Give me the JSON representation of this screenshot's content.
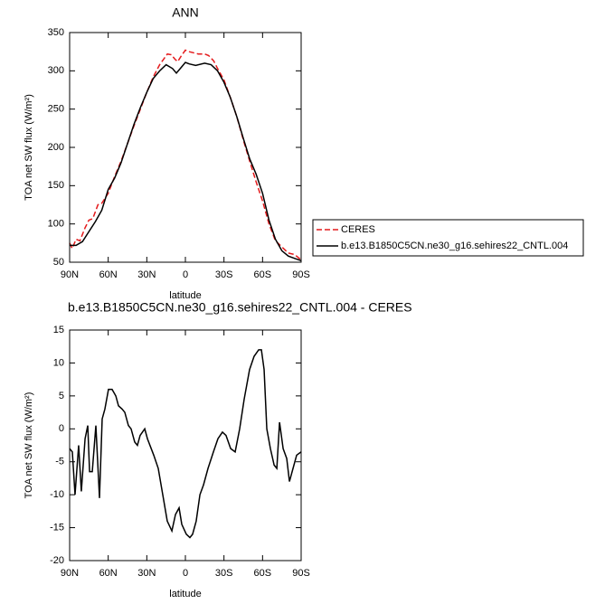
{
  "chart_data": [
    {
      "type": "line",
      "title": "ANN",
      "xlabel": "latitude",
      "ylabel": "TOA net SW flux (W/m²)",
      "xlim": [
        90,
        -90
      ],
      "xticks": [
        {
          "value": 90,
          "label": "90N"
        },
        {
          "value": 60,
          "label": "60N"
        },
        {
          "value": 30,
          "label": "30N"
        },
        0,
        {
          "value": -30,
          "label": "30S"
        },
        {
          "value": -60,
          "label": "60S"
        },
        {
          "value": -90,
          "label": "90S"
        }
      ],
      "ylim": [
        50,
        350
      ],
      "yticks": [
        50,
        100,
        150,
        200,
        250,
        300,
        350
      ],
      "legend": "right",
      "series": [
        {
          "name": "CERES",
          "color": "#e41a1c",
          "dash": true,
          "x": [
            90,
            88,
            85,
            82,
            78,
            75,
            72,
            68,
            65,
            60,
            55,
            50,
            45,
            40,
            35,
            30,
            25,
            20,
            17,
            14,
            11,
            8,
            6,
            3,
            0,
            -3,
            -10,
            -15,
            -18,
            -22,
            -25,
            -30,
            -35,
            -40,
            -45,
            -50,
            -55,
            -60,
            -65,
            -70,
            -75,
            -80,
            -85,
            -90
          ],
          "values": [
            75,
            68,
            80,
            78,
            95,
            105,
            107,
            125,
            127,
            140,
            162,
            182,
            205,
            228,
            250,
            272,
            292,
            308,
            315,
            322,
            321,
            315,
            312,
            320,
            327,
            325,
            322,
            322,
            320,
            313,
            303,
            288,
            265,
            240,
            210,
            182,
            155,
            130,
            100,
            78,
            70,
            62,
            60,
            53
          ]
        },
        {
          "name": "b.e13.B1850C5CN.ne30_g16.sehires22_CNTL.004",
          "color": "#000000",
          "dash": false,
          "x": [
            90,
            85,
            80,
            75,
            70,
            65,
            60,
            55,
            50,
            45,
            40,
            35,
            30,
            25,
            20,
            15,
            10,
            7,
            3,
            0,
            -3,
            -8,
            -15,
            -20,
            -25,
            -30,
            -35,
            -40,
            -45,
            -50,
            -55,
            -60,
            -65,
            -70,
            -75,
            -80,
            -85,
            -90
          ],
          "values": [
            72,
            72,
            77,
            90,
            103,
            118,
            145,
            160,
            180,
            205,
            230,
            252,
            272,
            290,
            300,
            308,
            303,
            297,
            305,
            311,
            309,
            307,
            310,
            308,
            300,
            285,
            265,
            240,
            212,
            185,
            165,
            140,
            105,
            80,
            65,
            58,
            55,
            52
          ]
        }
      ]
    },
    {
      "type": "line",
      "title": "b.e13.B1850C5CN.ne30_g16.sehires22_CNTL.004 - CERES",
      "xlabel": "latitude",
      "ylabel": "TOA net SW flux (W/m²)",
      "xlim": [
        90,
        -90
      ],
      "xticks": [
        {
          "value": 90,
          "label": "90N"
        },
        {
          "value": 60,
          "label": "60N"
        },
        {
          "value": 30,
          "label": "30N"
        },
        0,
        {
          "value": -30,
          "label": "30S"
        },
        {
          "value": -60,
          "label": "60S"
        },
        {
          "value": -90,
          "label": "90S"
        }
      ],
      "ylim": [
        -20,
        15
      ],
      "yticks": [
        -20,
        -15,
        -10,
        -5,
        0,
        5,
        10,
        15
      ],
      "color": "#000000",
      "x": [
        90,
        87.9,
        85.8,
        83,
        80.9,
        78,
        75.9,
        74.5,
        72.4,
        69.6,
        66.8,
        64.7,
        62.6,
        59.8,
        57,
        54.1,
        52,
        49.2,
        47.1,
        44.3,
        42.2,
        39.4,
        37.3,
        35.2,
        31.6,
        29.5,
        24.6,
        21.1,
        17.6,
        14.1,
        10.5,
        7.7,
        4.9,
        2.8,
        -0.7,
        -3.5,
        -5.6,
        -8.4,
        -11.3,
        -14.1,
        -17.6,
        -21.8,
        -25.3,
        -28.8,
        -31.6,
        -35.2,
        -38.7,
        -42.2,
        -45.7,
        -49.9,
        -53.4,
        -57,
        -59.1,
        -61.2,
        -63.3,
        -66.1,
        -69,
        -71.1,
        -73.2,
        -76,
        -78.8,
        -80.9,
        -83.7,
        -86.5,
        -90
      ],
      "values": [
        -3,
        -3.5,
        -10,
        -2.5,
        -9.5,
        -1.5,
        0.5,
        -6.5,
        -6.5,
        0.5,
        -10.5,
        1.5,
        3,
        6,
        6,
        5,
        3.5,
        3,
        2.5,
        0.5,
        0,
        -2,
        -2.5,
        -1,
        0,
        -1.5,
        -4,
        -6,
        -10,
        -14,
        -15.5,
        -13,
        -12,
        -14.5,
        -16,
        -16.5,
        -16,
        -14,
        -10,
        -8.5,
        -6,
        -3.5,
        -1.5,
        -0.5,
        -1,
        -3,
        -3.5,
        0,
        4.5,
        9,
        11,
        12,
        12,
        9,
        0,
        -3,
        -5.5,
        -6,
        1,
        -3,
        -4.5,
        -8,
        -6,
        -4,
        -3.5
      ]
    }
  ]
}
